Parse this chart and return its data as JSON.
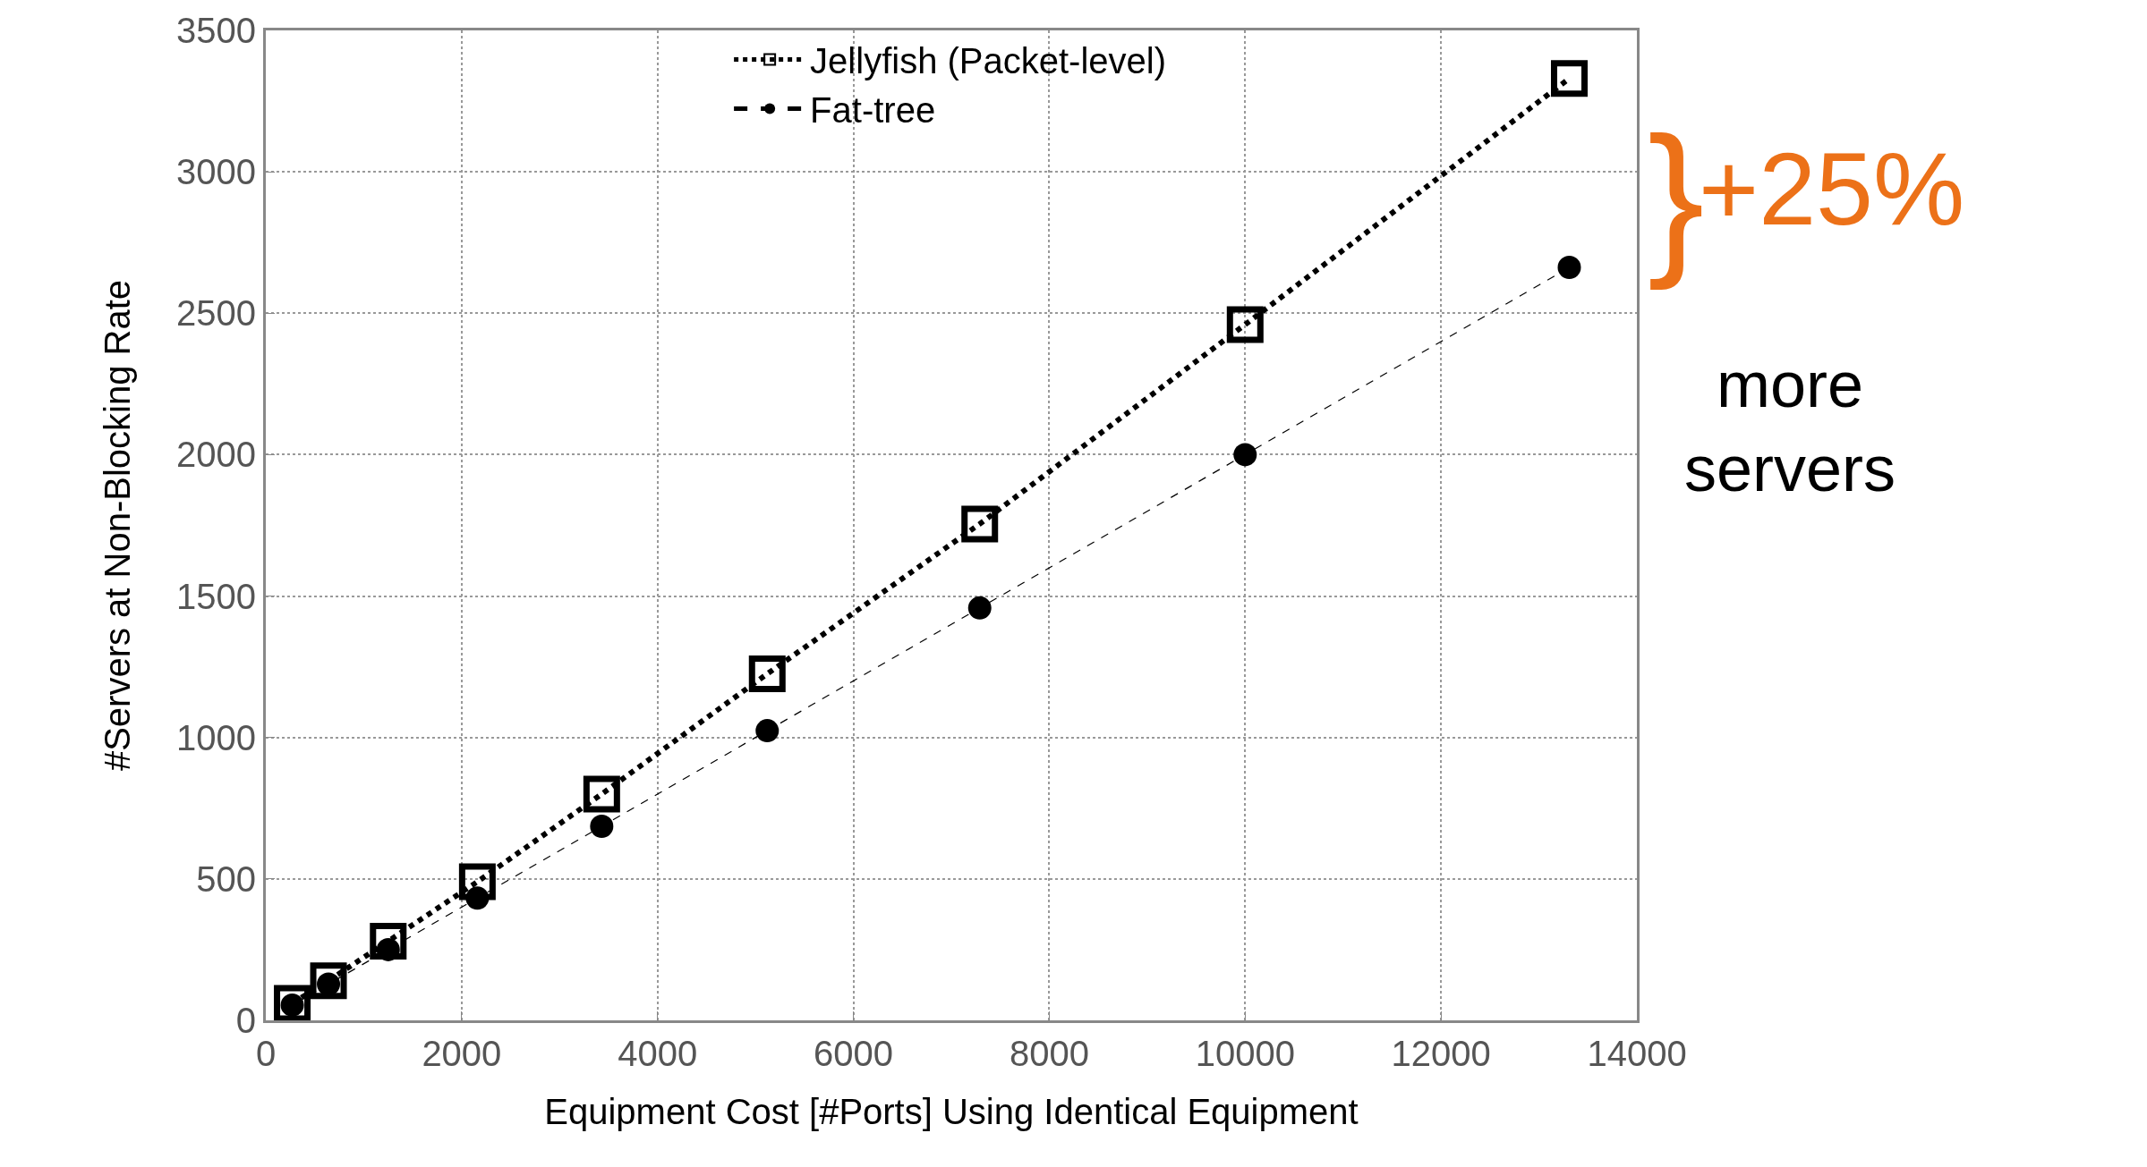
{
  "chart_data": {
    "type": "line",
    "xlabel": "Equipment Cost [#Ports] Using Identical Equipment",
    "ylabel": "#Servers at Non-Blocking Rate",
    "x": [
      270,
      640,
      1250,
      2160,
      3430,
      5120,
      7290,
      10000,
      13310
    ],
    "series": [
      {
        "name": "Jellyfish (Packet-level)",
        "color": "#000000",
        "marker": "square",
        "line_style": "dotted",
        "values": [
          60,
          140,
          280,
          490,
          800,
          1225,
          1755,
          2460,
          3330
        ]
      },
      {
        "name": "Fat-tree",
        "color": "#000000",
        "marker": "circle",
        "line_style": "dashed",
        "values": [
          54,
          128,
          250,
          432,
          686,
          1024,
          1458,
          2000,
          2662
        ]
      }
    ],
    "xlim": [
      0,
      14000
    ],
    "xticks": [
      0,
      2000,
      4000,
      6000,
      8000,
      10000,
      12000,
      14000
    ],
    "ylim": [
      0,
      3500
    ],
    "yticks": [
      0,
      500,
      1000,
      1500,
      2000,
      2500,
      3000,
      3500
    ],
    "grid": true,
    "legend": "top",
    "annotations": [
      "}",
      "+25%",
      "more servers"
    ]
  }
}
